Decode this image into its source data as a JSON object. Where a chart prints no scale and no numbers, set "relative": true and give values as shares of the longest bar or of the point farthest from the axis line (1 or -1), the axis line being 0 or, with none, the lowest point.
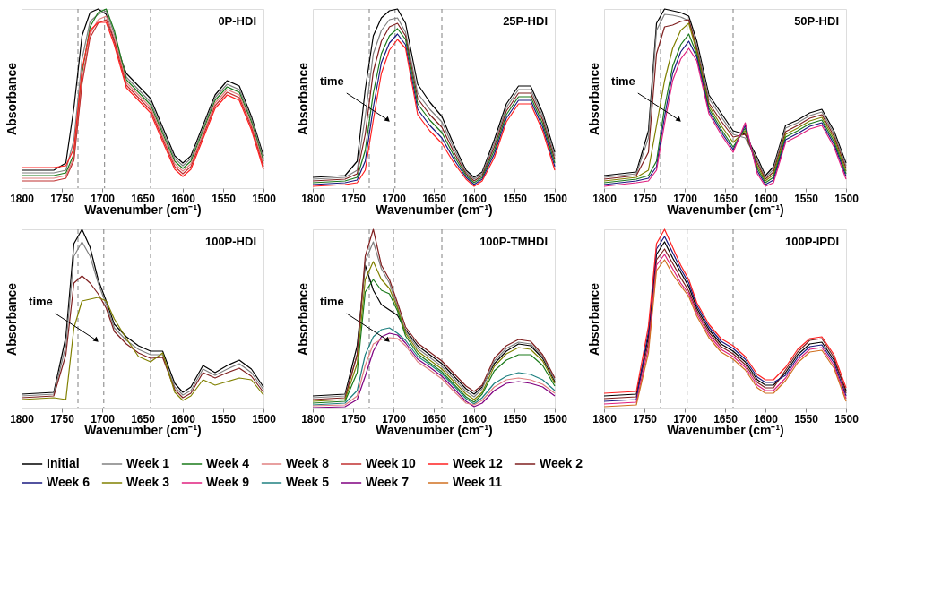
{
  "chart_data": [
    {
      "type": "line",
      "title": "0P-HDI",
      "xlabel": "Wavenumber (cm⁻¹)",
      "ylabel": "Absorbance",
      "relative": true,
      "xlim": [
        1800,
        1500
      ],
      "xticks": [
        1800,
        1750,
        1700,
        1650,
        1600,
        1550,
        1500
      ],
      "grid": false,
      "legend": "bottom",
      "line_style": "solid",
      "marker": "none",
      "x": [
        1800,
        1760,
        1745,
        1735,
        1725,
        1715,
        1705,
        1695,
        1685,
        1670,
        1655,
        1640,
        1625,
        1610,
        1600,
        1590,
        1575,
        1560,
        1545,
        1530,
        1515,
        1500
      ],
      "ref_lines": [
        {
          "axis": "x",
          "value": 1730,
          "color": "#808080",
          "line_style": "dashed"
        },
        {
          "axis": "x",
          "value": 1697,
          "color": "#808080",
          "line_style": "dashed"
        },
        {
          "axis": "x",
          "value": 1640,
          "color": "#808080",
          "line_style": "dashed"
        }
      ],
      "series": [
        {
          "name": "Initial",
          "color": "#000000",
          "values": [
            0.1,
            0.1,
            0.14,
            0.45,
            0.85,
            0.98,
            1.0,
            0.97,
            0.82,
            0.64,
            0.57,
            0.5,
            0.34,
            0.18,
            0.14,
            0.18,
            0.35,
            0.52,
            0.6,
            0.57,
            0.4,
            0.18
          ]
        },
        {
          "name": "Week 1",
          "color": "#808080",
          "values": [
            0.085,
            0.085,
            0.1,
            0.27,
            0.72,
            0.93,
            0.97,
            0.99,
            0.86,
            0.62,
            0.55,
            0.48,
            0.32,
            0.165,
            0.125,
            0.165,
            0.335,
            0.505,
            0.58,
            0.55,
            0.385,
            0.165
          ]
        },
        {
          "name": "Week 4",
          "color": "#1a7a1a",
          "values": [
            0.07,
            0.07,
            0.085,
            0.19,
            0.64,
            0.9,
            0.98,
            1.0,
            0.88,
            0.605,
            0.535,
            0.465,
            0.305,
            0.15,
            0.11,
            0.15,
            0.32,
            0.49,
            0.565,
            0.535,
            0.37,
            0.15
          ]
        },
        {
          "name": "Week 8",
          "color": "#e08080",
          "values": [
            0.055,
            0.055,
            0.07,
            0.17,
            0.6,
            0.86,
            0.94,
            0.96,
            0.84,
            0.59,
            0.52,
            0.45,
            0.29,
            0.135,
            0.095,
            0.135,
            0.305,
            0.475,
            0.55,
            0.52,
            0.355,
            0.135
          ]
        },
        {
          "name": "Week 10",
          "color": "#c03030",
          "values": [
            0.04,
            0.04,
            0.055,
            0.155,
            0.58,
            0.84,
            0.92,
            0.94,
            0.82,
            0.575,
            0.505,
            0.435,
            0.275,
            0.12,
            0.08,
            0.12,
            0.29,
            0.46,
            0.535,
            0.505,
            0.34,
            0.12
          ]
        },
        {
          "name": "Week 12",
          "color": "#ff2020",
          "values": [
            0.115,
            0.115,
            0.125,
            0.22,
            0.66,
            0.88,
            0.925,
            0.925,
            0.8,
            0.56,
            0.49,
            0.42,
            0.26,
            0.105,
            0.065,
            0.105,
            0.275,
            0.445,
            0.52,
            0.49,
            0.325,
            0.105
          ]
        }
      ]
    },
    {
      "type": "line",
      "title": "25P-HDI",
      "xlabel": "Wavenumber (cm⁻¹)",
      "ylabel": "Absorbance",
      "relative": true,
      "xlim": [
        1800,
        1500
      ],
      "xticks": [
        1800,
        1750,
        1700,
        1650,
        1600,
        1550,
        1500
      ],
      "grid": false,
      "legend": "bottom",
      "line_style": "solid",
      "marker": "none",
      "annotations": [
        "time"
      ],
      "x": [
        1800,
        1760,
        1745,
        1735,
        1725,
        1715,
        1705,
        1695,
        1685,
        1670,
        1655,
        1640,
        1625,
        1610,
        1600,
        1590,
        1575,
        1560,
        1545,
        1530,
        1515,
        1500
      ],
      "ref_lines": [
        {
          "axis": "x",
          "value": 1730,
          "color": "#808080",
          "line_style": "dashed"
        },
        {
          "axis": "x",
          "value": 1698,
          "color": "#808080",
          "line_style": "dashed"
        },
        {
          "axis": "x",
          "value": 1640,
          "color": "#808080",
          "line_style": "dashed"
        }
      ],
      "series": [
        {
          "name": "Initial",
          "color": "#000000",
          "values": [
            0.06,
            0.07,
            0.15,
            0.55,
            0.85,
            0.95,
            0.99,
            1.0,
            0.92,
            0.58,
            0.48,
            0.4,
            0.24,
            0.1,
            0.06,
            0.09,
            0.27,
            0.47,
            0.57,
            0.57,
            0.42,
            0.2
          ]
        },
        {
          "name": "Week 1",
          "color": "#808080",
          "values": [
            0.05,
            0.06,
            0.1,
            0.4,
            0.75,
            0.88,
            0.94,
            0.95,
            0.87,
            0.53,
            0.44,
            0.37,
            0.22,
            0.09,
            0.05,
            0.08,
            0.25,
            0.45,
            0.55,
            0.55,
            0.4,
            0.18
          ]
        },
        {
          "name": "Week 2",
          "color": "#7f1f1f",
          "values": [
            0.04,
            0.05,
            0.08,
            0.3,
            0.65,
            0.82,
            0.9,
            0.92,
            0.85,
            0.5,
            0.41,
            0.34,
            0.2,
            0.08,
            0.04,
            0.07,
            0.23,
            0.43,
            0.53,
            0.53,
            0.38,
            0.16
          ]
        },
        {
          "name": "Week 4",
          "color": "#1a7a1a",
          "values": [
            0.03,
            0.04,
            0.06,
            0.21,
            0.53,
            0.75,
            0.85,
            0.89,
            0.83,
            0.47,
            0.38,
            0.31,
            0.18,
            0.07,
            0.03,
            0.06,
            0.21,
            0.41,
            0.51,
            0.51,
            0.36,
            0.14
          ]
        },
        {
          "name": "Week 6",
          "color": "#1a1a80",
          "values": [
            0.02,
            0.03,
            0.045,
            0.15,
            0.45,
            0.7,
            0.81,
            0.86,
            0.8,
            0.44,
            0.35,
            0.28,
            0.16,
            0.06,
            0.02,
            0.05,
            0.19,
            0.39,
            0.49,
            0.49,
            0.34,
            0.12
          ]
        },
        {
          "name": "Week 12",
          "color": "#ff2020",
          "values": [
            0.01,
            0.02,
            0.03,
            0.1,
            0.38,
            0.64,
            0.77,
            0.83,
            0.78,
            0.41,
            0.32,
            0.25,
            0.14,
            0.05,
            0.01,
            0.04,
            0.17,
            0.37,
            0.47,
            0.47,
            0.32,
            0.1
          ]
        }
      ]
    },
    {
      "type": "line",
      "title": "50P-HDI",
      "xlabel": "Wavenumber (cm⁻¹)",
      "ylabel": "Absorbance",
      "relative": true,
      "xlim": [
        1800,
        1500
      ],
      "xticks": [
        1800,
        1750,
        1700,
        1650,
        1600,
        1550,
        1500
      ],
      "grid": false,
      "legend": "bottom",
      "line_style": "solid",
      "marker": "none",
      "annotations": [
        "time"
      ],
      "x": [
        1800,
        1760,
        1745,
        1735,
        1725,
        1715,
        1705,
        1695,
        1685,
        1670,
        1655,
        1640,
        1625,
        1610,
        1600,
        1590,
        1575,
        1560,
        1545,
        1530,
        1515,
        1500
      ],
      "ref_lines": [
        {
          "axis": "x",
          "value": 1730,
          "color": "#808080",
          "line_style": "dashed"
        },
        {
          "axis": "x",
          "value": 1697,
          "color": "#808080",
          "line_style": "dashed"
        },
        {
          "axis": "x",
          "value": 1640,
          "color": "#808080",
          "line_style": "dashed"
        }
      ],
      "series": [
        {
          "name": "Initial",
          "color": "#000000",
          "values": [
            0.07,
            0.09,
            0.32,
            0.92,
            1.0,
            0.99,
            0.98,
            0.96,
            0.82,
            0.52,
            0.42,
            0.32,
            0.3,
            0.17,
            0.07,
            0.12,
            0.35,
            0.38,
            0.42,
            0.44,
            0.32,
            0.14
          ]
        },
        {
          "name": "Week 1",
          "color": "#808080",
          "values": [
            0.06,
            0.08,
            0.28,
            0.88,
            0.97,
            0.965,
            0.955,
            0.935,
            0.795,
            0.5,
            0.4,
            0.3,
            0.28,
            0.155,
            0.06,
            0.105,
            0.335,
            0.365,
            0.405,
            0.425,
            0.305,
            0.125
          ]
        },
        {
          "name": "Week 2",
          "color": "#7f1f1f",
          "values": [
            0.05,
            0.07,
            0.2,
            0.75,
            0.9,
            0.91,
            0.93,
            0.94,
            0.775,
            0.475,
            0.375,
            0.285,
            0.3,
            0.14,
            0.05,
            0.09,
            0.315,
            0.35,
            0.39,
            0.41,
            0.29,
            0.11
          ]
        },
        {
          "name": "Week 3",
          "color": "#808000",
          "values": [
            0.04,
            0.06,
            0.1,
            0.35,
            0.6,
            0.78,
            0.88,
            0.92,
            0.76,
            0.46,
            0.35,
            0.255,
            0.32,
            0.125,
            0.04,
            0.075,
            0.3,
            0.335,
            0.375,
            0.395,
            0.275,
            0.095
          ]
        },
        {
          "name": "Week 4",
          "color": "#1a7a1a",
          "values": [
            0.03,
            0.05,
            0.07,
            0.15,
            0.45,
            0.68,
            0.8,
            0.86,
            0.745,
            0.445,
            0.33,
            0.23,
            0.335,
            0.11,
            0.03,
            0.06,
            0.285,
            0.32,
            0.36,
            0.38,
            0.26,
            0.08
          ]
        },
        {
          "name": "Week 6",
          "color": "#1a1a80",
          "values": [
            0.02,
            0.04,
            0.055,
            0.12,
            0.4,
            0.64,
            0.76,
            0.82,
            0.73,
            0.43,
            0.315,
            0.215,
            0.35,
            0.095,
            0.02,
            0.045,
            0.27,
            0.305,
            0.345,
            0.365,
            0.245,
            0.065
          ]
        },
        {
          "name": "Week 9",
          "color": "#e0207f",
          "values": [
            0.01,
            0.03,
            0.04,
            0.1,
            0.36,
            0.6,
            0.72,
            0.78,
            0.71,
            0.415,
            0.3,
            0.2,
            0.365,
            0.08,
            0.01,
            0.03,
            0.255,
            0.29,
            0.33,
            0.35,
            0.23,
            0.05
          ]
        }
      ]
    },
    {
      "type": "line",
      "title": "100P-HDI",
      "xlabel": "Wavenumber (cm⁻¹)",
      "ylabel": "Absorbance",
      "relative": true,
      "xlim": [
        1800,
        1500
      ],
      "xticks": [
        1800,
        1750,
        1700,
        1650,
        1600,
        1550,
        1500
      ],
      "grid": false,
      "legend": "bottom",
      "line_style": "solid",
      "marker": "none",
      "annotations": [
        "time"
      ],
      "x": [
        1800,
        1760,
        1745,
        1735,
        1725,
        1715,
        1705,
        1695,
        1685,
        1670,
        1655,
        1640,
        1625,
        1610,
        1600,
        1590,
        1575,
        1560,
        1545,
        1530,
        1515,
        1500
      ],
      "ref_lines": [
        {
          "axis": "x",
          "value": 1730,
          "color": "#808080",
          "line_style": "dashed"
        },
        {
          "axis": "x",
          "value": 1698,
          "color": "#808080",
          "line_style": "dashed"
        },
        {
          "axis": "x",
          "value": 1640,
          "color": "#808080",
          "line_style": "dashed"
        }
      ],
      "series": [
        {
          "name": "Initial",
          "color": "#000000",
          "values": [
            0.08,
            0.09,
            0.4,
            0.92,
            1.0,
            0.9,
            0.72,
            0.6,
            0.47,
            0.4,
            0.35,
            0.32,
            0.32,
            0.14,
            0.09,
            0.12,
            0.24,
            0.2,
            0.24,
            0.27,
            0.22,
            0.12
          ]
        },
        {
          "name": "Week 1",
          "color": "#808080",
          "values": [
            0.07,
            0.08,
            0.35,
            0.85,
            0.93,
            0.85,
            0.7,
            0.58,
            0.45,
            0.38,
            0.33,
            0.3,
            0.3,
            0.12,
            0.075,
            0.1,
            0.22,
            0.185,
            0.22,
            0.25,
            0.2,
            0.105
          ]
        },
        {
          "name": "Week 2",
          "color": "#7f1f1f",
          "values": [
            0.06,
            0.07,
            0.3,
            0.7,
            0.74,
            0.7,
            0.64,
            0.56,
            0.43,
            0.36,
            0.31,
            0.28,
            0.285,
            0.105,
            0.06,
            0.085,
            0.2,
            0.17,
            0.2,
            0.225,
            0.18,
            0.09
          ]
        },
        {
          "name": "Week 3",
          "color": "#808000",
          "values": [
            0.05,
            0.06,
            0.05,
            0.45,
            0.6,
            0.61,
            0.62,
            0.6,
            0.5,
            0.39,
            0.29,
            0.26,
            0.31,
            0.09,
            0.045,
            0.07,
            0.16,
            0.13,
            0.15,
            0.17,
            0.16,
            0.075
          ]
        }
      ]
    },
    {
      "type": "line",
      "title": "100P-TMHDI",
      "xlabel": "Wavenumber (cm⁻¹)",
      "ylabel": "Absorbance",
      "relative": true,
      "xlim": [
        1800,
        1500
      ],
      "xticks": [
        1800,
        1750,
        1700,
        1650,
        1600,
        1550,
        1500
      ],
      "grid": false,
      "legend": "bottom",
      "line_style": "solid",
      "marker": "none",
      "annotations": [
        "time"
      ],
      "x": [
        1800,
        1760,
        1745,
        1735,
        1725,
        1715,
        1705,
        1695,
        1685,
        1670,
        1655,
        1640,
        1625,
        1610,
        1600,
        1590,
        1575,
        1560,
        1545,
        1530,
        1515,
        1500
      ],
      "ref_lines": [
        {
          "axis": "x",
          "value": 1730,
          "color": "#808080",
          "line_style": "dashed"
        },
        {
          "axis": "x",
          "value": 1700,
          "color": "#808080",
          "line_style": "dashed"
        },
        {
          "axis": "x",
          "value": 1640,
          "color": "#808080",
          "line_style": "dashed"
        }
      ],
      "series": [
        {
          "name": "Initial",
          "color": "#000000",
          "values": [
            0.07,
            0.08,
            0.35,
            0.8,
            0.66,
            0.58,
            0.55,
            0.52,
            0.44,
            0.35,
            0.3,
            0.25,
            0.18,
            0.11,
            0.08,
            0.12,
            0.25,
            0.32,
            0.36,
            0.35,
            0.28,
            0.15
          ]
        },
        {
          "name": "Week 1",
          "color": "#808080",
          "values": [
            0.06,
            0.07,
            0.3,
            0.82,
            0.93,
            0.78,
            0.7,
            0.57,
            0.43,
            0.335,
            0.285,
            0.235,
            0.165,
            0.095,
            0.065,
            0.11,
            0.265,
            0.335,
            0.37,
            0.36,
            0.29,
            0.16
          ]
        },
        {
          "name": "Week 2",
          "color": "#7f1f1f",
          "values": [
            0.05,
            0.06,
            0.3,
            0.85,
            1.0,
            0.8,
            0.72,
            0.59,
            0.455,
            0.365,
            0.315,
            0.265,
            0.195,
            0.125,
            0.095,
            0.13,
            0.28,
            0.35,
            0.385,
            0.375,
            0.3,
            0.17
          ]
        },
        {
          "name": "Week 3",
          "color": "#808000",
          "values": [
            0.04,
            0.05,
            0.25,
            0.72,
            0.82,
            0.72,
            0.67,
            0.56,
            0.42,
            0.32,
            0.27,
            0.22,
            0.15,
            0.08,
            0.05,
            0.09,
            0.235,
            0.305,
            0.34,
            0.33,
            0.265,
            0.14
          ]
        },
        {
          "name": "Week 4",
          "color": "#1a7a1a",
          "values": [
            0.03,
            0.04,
            0.2,
            0.65,
            0.72,
            0.66,
            0.64,
            0.545,
            0.405,
            0.305,
            0.255,
            0.205,
            0.135,
            0.065,
            0.035,
            0.08,
            0.21,
            0.27,
            0.3,
            0.3,
            0.24,
            0.125
          ]
        },
        {
          "name": "Week 5",
          "color": "#1f8080",
          "values": [
            0.02,
            0.03,
            0.1,
            0.3,
            0.4,
            0.44,
            0.45,
            0.42,
            0.38,
            0.29,
            0.245,
            0.195,
            0.125,
            0.055,
            0.025,
            0.06,
            0.14,
            0.18,
            0.2,
            0.19,
            0.16,
            0.1
          ]
        },
        {
          "name": "Week 7",
          "color": "#800080",
          "values": [
            0.005,
            0.01,
            0.05,
            0.18,
            0.32,
            0.4,
            0.42,
            0.41,
            0.365,
            0.275,
            0.23,
            0.18,
            0.11,
            0.04,
            0.01,
            0.03,
            0.1,
            0.14,
            0.15,
            0.14,
            0.12,
            0.07
          ]
        },
        {
          "name": "Week 8",
          "color": "#e08080",
          "values": [
            0.015,
            0.02,
            0.07,
            0.24,
            0.36,
            0.385,
            0.395,
            0.39,
            0.35,
            0.26,
            0.215,
            0.165,
            0.095,
            0.03,
            0.02,
            0.045,
            0.12,
            0.16,
            0.17,
            0.16,
            0.135,
            0.085
          ]
        }
      ]
    },
    {
      "type": "line",
      "title": "100P-IPDI",
      "xlabel": "Wavenumber (cm⁻¹)",
      "ylabel": "Absorbance",
      "relative": true,
      "xlim": [
        1800,
        1500
      ],
      "xticks": [
        1800,
        1750,
        1700,
        1650,
        1600,
        1550,
        1500
      ],
      "grid": false,
      "legend": "bottom",
      "line_style": "solid",
      "marker": "none",
      "x": [
        1800,
        1760,
        1745,
        1735,
        1725,
        1715,
        1705,
        1695,
        1685,
        1670,
        1655,
        1640,
        1625,
        1610,
        1600,
        1590,
        1575,
        1560,
        1545,
        1530,
        1515,
        1500
      ],
      "ref_lines": [
        {
          "axis": "x",
          "value": 1730,
          "color": "#808080",
          "line_style": "dashed"
        },
        {
          "axis": "x",
          "value": 1697,
          "color": "#808080",
          "line_style": "dashed"
        },
        {
          "axis": "x",
          "value": 1640,
          "color": "#808080",
          "line_style": "dashed"
        }
      ],
      "series": [
        {
          "name": "Initial",
          "color": "#000000",
          "values": [
            0.07,
            0.08,
            0.4,
            0.86,
            0.93,
            0.84,
            0.76,
            0.68,
            0.56,
            0.44,
            0.36,
            0.32,
            0.26,
            0.16,
            0.13,
            0.13,
            0.2,
            0.3,
            0.36,
            0.37,
            0.27,
            0.1
          ]
        },
        {
          "name": "Week 2",
          "color": "#7f1f1f",
          "values": [
            0.055,
            0.065,
            0.37,
            0.83,
            0.89,
            0.81,
            0.73,
            0.655,
            0.545,
            0.425,
            0.345,
            0.305,
            0.245,
            0.145,
            0.115,
            0.115,
            0.215,
            0.315,
            0.38,
            0.39,
            0.285,
            0.085
          ]
        },
        {
          "name": "Week 6",
          "color": "#1a1a80",
          "values": [
            0.04,
            0.05,
            0.43,
            0.89,
            0.96,
            0.87,
            0.78,
            0.7,
            0.575,
            0.455,
            0.375,
            0.335,
            0.275,
            0.175,
            0.145,
            0.145,
            0.185,
            0.285,
            0.345,
            0.355,
            0.255,
            0.07
          ]
        },
        {
          "name": "Week 9",
          "color": "#e0207f",
          "values": [
            0.025,
            0.035,
            0.34,
            0.8,
            0.86,
            0.78,
            0.7,
            0.64,
            0.53,
            0.41,
            0.33,
            0.29,
            0.23,
            0.13,
            0.1,
            0.1,
            0.17,
            0.27,
            0.33,
            0.34,
            0.24,
            0.055
          ]
        },
        {
          "name": "Week 11",
          "color": "#d07020",
          "values": [
            0.01,
            0.02,
            0.31,
            0.77,
            0.83,
            0.75,
            0.685,
            0.625,
            0.515,
            0.395,
            0.315,
            0.275,
            0.215,
            0.115,
            0.085,
            0.085,
            0.155,
            0.255,
            0.315,
            0.325,
            0.225,
            0.04
          ]
        },
        {
          "name": "Week 12",
          "color": "#ff2020",
          "values": [
            0.085,
            0.095,
            0.46,
            0.92,
            1.0,
            0.9,
            0.8,
            0.72,
            0.59,
            0.47,
            0.39,
            0.35,
            0.29,
            0.19,
            0.16,
            0.16,
            0.23,
            0.33,
            0.39,
            0.4,
            0.3,
            0.115
          ]
        }
      ]
    }
  ]
}
